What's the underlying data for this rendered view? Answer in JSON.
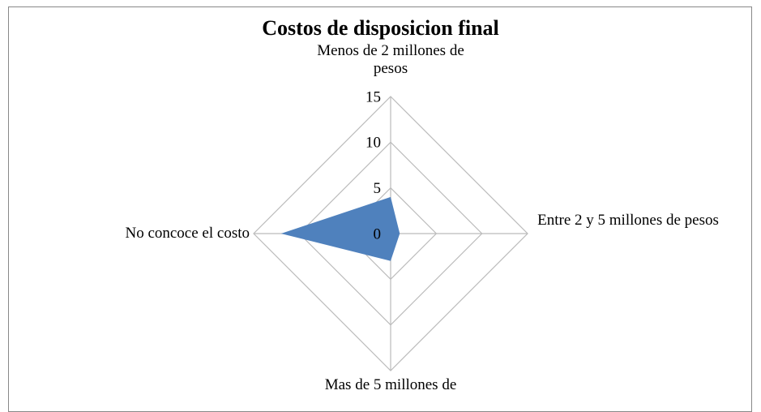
{
  "chart_data": {
    "type": "radar",
    "title": "Costos de disposicion final",
    "categories": [
      "Menos de 2 millones de pesos",
      "Entre 2 y 5 millones de pesos",
      "Mas de 5 millones de",
      "No concoce el costo"
    ],
    "values": [
      4,
      1,
      3,
      12
    ],
    "color": "#4f81bd",
    "ylim": [
      0,
      15
    ],
    "yticks": [
      0,
      5,
      10,
      15
    ],
    "grid": true
  }
}
